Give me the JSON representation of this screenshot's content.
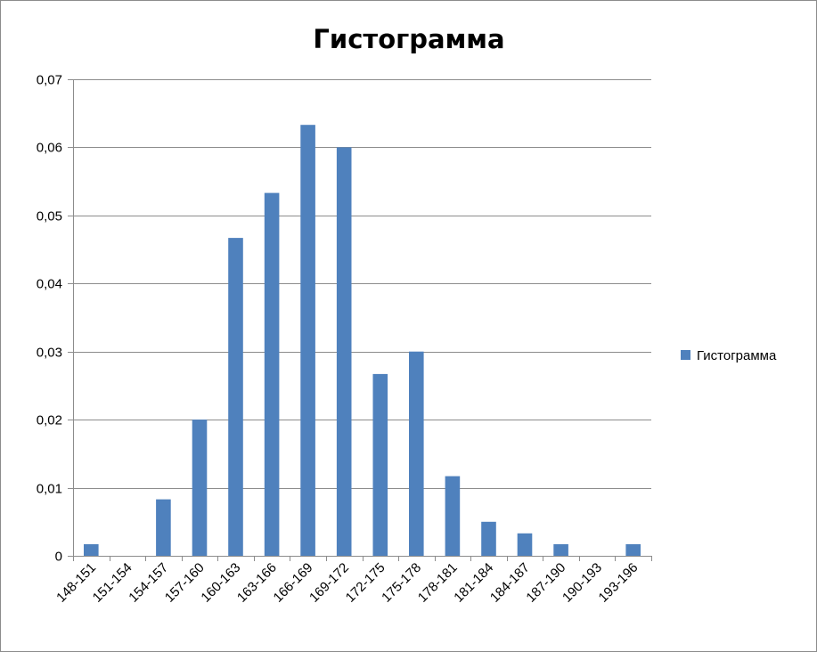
{
  "chart_data": {
    "type": "bar",
    "title": "Гистограмма",
    "xlabel": "",
    "ylabel": "",
    "categories": [
      "148-151",
      "151-154",
      "154-157",
      "157-160",
      "160-163",
      "163-166",
      "166-169",
      "169-172",
      "172-175",
      "175-178",
      "178-181",
      "181-184",
      "184-187",
      "187-190",
      "190-193",
      "193-196"
    ],
    "series": [
      {
        "name": "Гистограмма",
        "values": [
          0.0017,
          0,
          0.0083,
          0.02,
          0.0467,
          0.0533,
          0.0633,
          0.06,
          0.0267,
          0.03,
          0.0117,
          0.005,
          0.0033,
          0.0017,
          0,
          0.0017
        ],
        "color": "#4f81bd"
      }
    ],
    "ylim": [
      0,
      0.07
    ],
    "yticks": [
      "0",
      "0,01",
      "0,02",
      "0,03",
      "0,04",
      "0,05",
      "0,06",
      "0,07"
    ],
    "grid": true,
    "legend": "right"
  }
}
